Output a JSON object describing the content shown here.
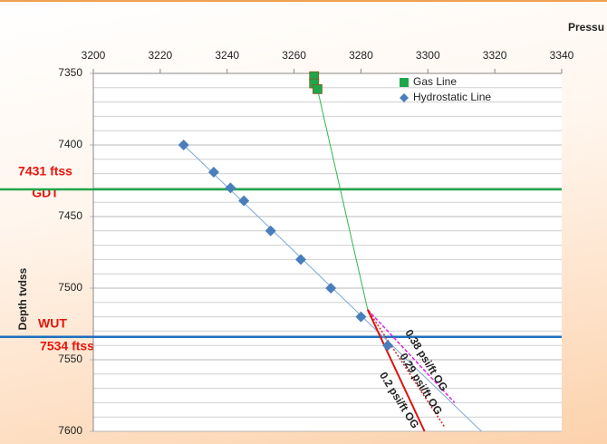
{
  "chart_data": {
    "type": "scatter",
    "x_label": "Pressu",
    "y_label": "Depth tvdss",
    "xlim": [
      3200,
      3340
    ],
    "xticks": [
      3200,
      3220,
      3240,
      3260,
      3280,
      3300,
      3320,
      3340
    ],
    "ylim": [
      7350,
      7600
    ],
    "yticks": [
      7350,
      7400,
      7450,
      7500,
      7550,
      7600
    ],
    "y_inverted": true,
    "x_axis_position": "top",
    "minor_grid_step": 10,
    "legend_position": "upper right",
    "series": [
      {
        "name": "Gas Line",
        "marker": "square",
        "color": "#1fa64a",
        "x": [
          3266,
          3266,
          3267
        ],
        "values": [
          7352,
          7357,
          7361
        ]
      },
      {
        "name": "Hydrostatic Line",
        "marker": "diamond",
        "color": "#4a7ebb",
        "x": [
          3227,
          3236,
          3241,
          3245,
          3253,
          3262,
          3271,
          3280,
          3288
        ],
        "values": [
          7400,
          7419,
          7430,
          7439,
          7460,
          7480,
          7500,
          7520,
          7540
        ]
      }
    ],
    "lines": [
      {
        "color": "#2db84c",
        "dash": "none",
        "width": 1,
        "x": [
          3267,
          3282
        ],
        "values": [
          7361,
          7515
        ]
      },
      {
        "color": "#7aa8d6",
        "dash": "none",
        "width": 1,
        "x": [
          3227,
          3316
        ],
        "values": [
          7400,
          7600
        ]
      },
      {
        "label": "0.38 psi/ft OG",
        "color": "#e020e0",
        "dash": "4 2",
        "width": 1.5,
        "x": [
          3282,
          3308
        ],
        "values": [
          7515,
          7580
        ]
      },
      {
        "label": "0.29 psi/ft OG",
        "color": "#e02020",
        "dash": "2 2",
        "width": 1.5,
        "x": [
          3282,
          3305
        ],
        "values": [
          7515,
          7597
        ]
      },
      {
        "label": "0.2 psi/ft OG",
        "color": "#e01010",
        "dash": "none",
        "width": 2,
        "x": [
          3282,
          3299
        ],
        "values": [
          7515,
          7600
        ]
      }
    ],
    "hlines": [
      {
        "value": 7431,
        "color": "#1fa64a"
      },
      {
        "value": 7534,
        "color": "#1f6fbf"
      }
    ],
    "annotations": [
      "7431 ftss",
      "GDT",
      "WUT",
      "7534 ftss"
    ]
  }
}
